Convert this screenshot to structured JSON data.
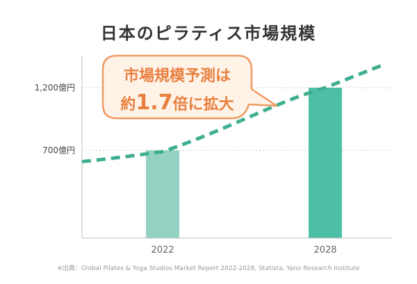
{
  "chart_data": {
    "type": "bar",
    "title": "日本のピラティス市場規模",
    "categories": [
      "2022",
      "2028"
    ],
    "values": [
      700,
      1200
    ],
    "y_ticks": [
      {
        "value": 700,
        "label": "700億円"
      },
      {
        "value": 1200,
        "label": "1,200億円"
      }
    ],
    "ylim": [
      0,
      1400
    ],
    "grid": "dotted",
    "trend_line": {
      "style": "dashed",
      "points": [
        {
          "x": "start",
          "y": 610
        },
        {
          "x": "2022",
          "y": 690
        },
        {
          "x": "2028",
          "y": 1200
        },
        {
          "x": "end",
          "y": 1380
        }
      ]
    },
    "colors": {
      "bar_2022": "#93d1c3",
      "bar_2028": "#4dbfa6",
      "trend": "#3fae90",
      "callout_border": "#ef9a62",
      "callout_fill": "#fff3e8",
      "callout_text": "#e8803f"
    },
    "callout": {
      "line1": "市場規模予測は",
      "line2_prefix": "約",
      "line2_number": "1.7",
      "line2_suffix": "倍に拡大"
    },
    "source": "※出典：Global Pilates & Yoga Studios Market Report 2022-2028, Statista, Yano Research Institute"
  }
}
